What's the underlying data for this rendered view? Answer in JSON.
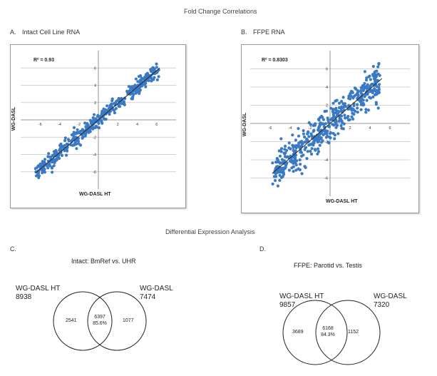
{
  "page_title": "Fold Change Correlations",
  "section2_title": "Differential Expression Analysis",
  "colors": {
    "point": "#3a79c4",
    "fit_line": "#2c2c2c",
    "grid": "#c4c4c4",
    "circle": "#222222"
  },
  "chart_data": [
    {
      "type": "scatter",
      "panel": "A.",
      "title": "Intact Cell Line RNA",
      "xlabel": "WG-DASL HT",
      "ylabel": "WG-DASL",
      "r_squared_label": "R² = 0.93",
      "x_ticks": [
        -6,
        -4,
        -2,
        2,
        4,
        6
      ],
      "y_ticks": [
        -6,
        -4,
        -2,
        2,
        4,
        6
      ],
      "xlim": [
        -8,
        8
      ],
      "ylim": [
        -8,
        8
      ],
      "trend": {
        "slope": 0.95,
        "intercept": 0,
        "x_range": [
          -6.5,
          6.3
        ]
      },
      "cloud": {
        "x_range": [
          -6.5,
          6.3
        ],
        "spread": 0.45,
        "n_points": 420
      },
      "grid": true
    },
    {
      "type": "scatter",
      "panel": "B.",
      "title": "FFPE RNA",
      "xlabel": "WG-DASL HT",
      "ylabel": "WG-DASL",
      "r_squared_label": "R² = 0.8303",
      "x_ticks": [
        -6,
        -4,
        -2,
        2,
        4,
        6
      ],
      "y_ticks": [
        -6,
        -4,
        -2,
        2,
        4,
        6
      ],
      "xlim": [
        -8,
        8
      ],
      "ylim": [
        -8,
        8
      ],
      "trend": {
        "slope": 0.95,
        "intercept": 0,
        "x_range": [
          -5.8,
          5.2
        ]
      },
      "cloud": {
        "x_range": [
          -5.8,
          5.0
        ],
        "spread": 0.95,
        "n_points": 480
      },
      "grid": true
    }
  ],
  "venn": [
    {
      "panel": "C.",
      "title": "Intact: BmRef vs. UHR",
      "left_label": "WG-DASL HT",
      "left_total": "8938",
      "right_label": "WG-DASL",
      "right_total": "7474",
      "left_only": "2541",
      "overlap": "6397",
      "overlap_pct": "85.6%",
      "right_only": "1077"
    },
    {
      "panel": "D.",
      "title": "FFPE: Parotid vs. Testis",
      "left_label": "WG-DASL HT",
      "left_total": "9857",
      "right_label": "WG-DASL",
      "right_total": "7320",
      "left_only": "3689",
      "overlap": "6168",
      "overlap_pct": "84.3%",
      "right_only": "1152"
    }
  ]
}
